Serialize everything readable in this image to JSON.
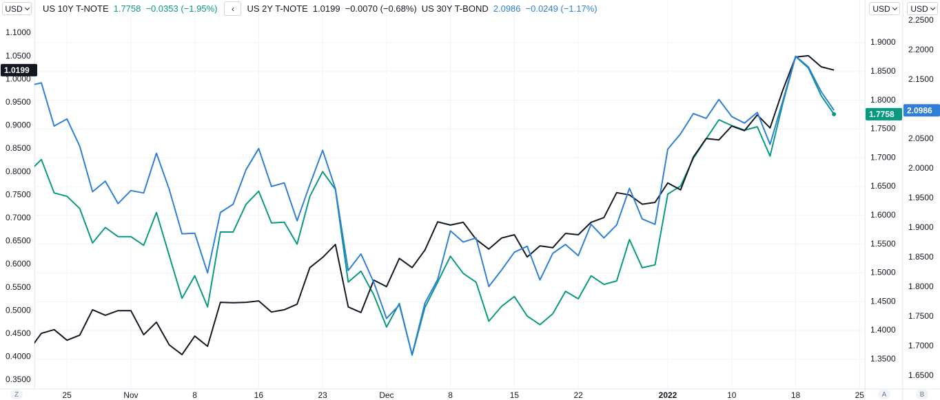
{
  "currency_buttons": [
    "USD",
    "USD",
    "USD"
  ],
  "scale_buttons": [
    "Z",
    "A",
    "B"
  ],
  "collapse_button": "‹",
  "chart_data": {
    "type": "line",
    "categories": [
      null,
      null,
      null,
      "25",
      null,
      null,
      null,
      null,
      "Nov",
      null,
      null,
      null,
      null,
      "8",
      null,
      null,
      null,
      null,
      "16",
      null,
      null,
      null,
      null,
      "23",
      null,
      null,
      null,
      null,
      "Dec",
      null,
      null,
      null,
      null,
      "8",
      null,
      null,
      null,
      null,
      "15",
      null,
      null,
      null,
      null,
      "22",
      null,
      null,
      null,
      null,
      null,
      null,
      "2022",
      null,
      null,
      null,
      null,
      "10",
      null,
      null,
      null,
      null,
      "18",
      null,
      null,
      null,
      null,
      "25"
    ],
    "series": [
      {
        "name": "US 10Y T-NOTE",
        "color": "#089981",
        "axis": "y2",
        "change": "−0.0353 (−1.95%)",
        "values": [
          1.675,
          1.697,
          1.639,
          1.633,
          1.612,
          1.552,
          1.579,
          1.563,
          1.563,
          1.548,
          1.605,
          1.53,
          1.456,
          1.495,
          1.441,
          1.571,
          1.571,
          1.619,
          1.642,
          1.587,
          1.588,
          1.55,
          1.633,
          1.676,
          1.645,
          1.484,
          1.503,
          1.462,
          1.406,
          1.447,
          1.357,
          1.44,
          1.484,
          1.529,
          1.499,
          1.484,
          1.416,
          1.442,
          1.459,
          1.425,
          1.41,
          1.429,
          1.468,
          1.455,
          1.495,
          1.48,
          1.486,
          1.558,
          1.509,
          1.514,
          1.637,
          1.651,
          1.699,
          1.733,
          1.766,
          1.756,
          1.748,
          1.754,
          1.703,
          1.795,
          1.876,
          1.856,
          1.808,
          1.7758,
          null,
          null
        ]
      },
      {
        "name": "US 2Y T-NOTE",
        "color": "#131722",
        "axis": "y",
        "change": "−0.0070 (−0.68%)",
        "values": [
          0.413,
          0.451,
          0.459,
          0.436,
          0.447,
          0.502,
          0.49,
          0.5,
          0.5,
          0.448,
          0.475,
          0.426,
          0.405,
          0.445,
          0.423,
          0.518,
          0.517,
          0.518,
          0.521,
          0.497,
          0.502,
          0.514,
          0.593,
          0.615,
          0.643,
          0.508,
          0.496,
          0.566,
          0.552,
          0.613,
          0.593,
          0.631,
          0.692,
          0.685,
          0.691,
          0.654,
          0.633,
          0.657,
          0.664,
          0.616,
          0.64,
          0.636,
          0.667,
          0.664,
          0.691,
          0.701,
          0.755,
          0.75,
          0.73,
          0.734,
          0.776,
          0.761,
          0.832,
          0.872,
          0.869,
          0.899,
          0.889,
          0.923,
          0.895,
          0.977,
          1.048,
          1.051,
          1.027,
          1.0199,
          null,
          null
        ]
      },
      {
        "name": "US 30Y T-BOND",
        "color": "#2f7ed8",
        "axis": "y3",
        "change": "−0.0249 (−1.17%)",
        "values": [
          2.14,
          2.145,
          2.072,
          2.084,
          2.038,
          1.961,
          1.979,
          1.941,
          1.963,
          1.959,
          2.026,
          1.965,
          1.89,
          1.891,
          1.824,
          1.926,
          1.94,
          1.998,
          2.034,
          1.97,
          1.976,
          1.912,
          1.973,
          2.031,
          1.966,
          1.828,
          1.856,
          1.808,
          1.747,
          1.77,
          1.686,
          1.773,
          1.813,
          1.895,
          1.876,
          1.883,
          1.801,
          1.829,
          1.859,
          1.869,
          1.812,
          1.857,
          1.872,
          1.853,
          1.906,
          1.883,
          1.905,
          1.967,
          1.915,
          1.906,
          2.033,
          2.059,
          2.093,
          2.085,
          2.117,
          2.088,
          2.077,
          2.095,
          2.041,
          2.115,
          2.19,
          2.172,
          2.13,
          2.0986,
          null,
          null
        ]
      }
    ],
    "ylim": [
      0.3307,
      1.1714
    ],
    "yticks": [
      {
        "value": 1.1,
        "label": "1.1000"
      },
      {
        "value": 1.05,
        "label": "1.0500"
      },
      {
        "value": 1.0,
        "label": "1.0000"
      },
      {
        "value": 0.95,
        "label": "0.9500"
      },
      {
        "value": 0.9,
        "label": "0.9000"
      },
      {
        "value": 0.85,
        "label": "0.8500"
      },
      {
        "value": 0.8,
        "label": "0.8000"
      },
      {
        "value": 0.75,
        "label": "0.7500"
      },
      {
        "value": 0.7,
        "label": "0.7000"
      },
      {
        "value": 0.65,
        "label": "0.6500"
      },
      {
        "value": 0.6,
        "label": "0.6000"
      },
      {
        "value": 0.55,
        "label": "0.5500"
      },
      {
        "value": 0.5,
        "label": "0.5000"
      },
      {
        "value": 0.45,
        "label": "0.4500"
      },
      {
        "value": 0.4,
        "label": "0.4000"
      },
      {
        "value": 0.35,
        "label": "0.3500"
      }
    ],
    "y2lim": [
      1.2983,
      1.9742
    ],
    "y2ticks": [
      {
        "value": 1.9,
        "label": "1.9000"
      },
      {
        "value": 1.85,
        "label": "1.8500"
      },
      {
        "value": 1.8,
        "label": "1.8000"
      },
      {
        "value": 1.75,
        "label": "1.7500"
      },
      {
        "value": 1.7,
        "label": "1.7000"
      },
      {
        "value": 1.65,
        "label": "1.6500"
      },
      {
        "value": 1.6,
        "label": "1.6000"
      },
      {
        "value": 1.55,
        "label": "1.5500"
      },
      {
        "value": 1.5,
        "label": "1.5000"
      },
      {
        "value": 1.45,
        "label": "1.4500"
      },
      {
        "value": 1.4,
        "label": "1.4000"
      },
      {
        "value": 1.35,
        "label": "1.3500"
      }
    ],
    "y3lim": [
      1.6279,
      2.2849
    ],
    "y3ticks": [
      {
        "value": 2.25,
        "label": "2.2500"
      },
      {
        "value": 2.2,
        "label": "2.2000"
      },
      {
        "value": 2.15,
        "label": "2.1500"
      },
      {
        "value": 2.1,
        "label": "2.1000"
      },
      {
        "value": 2.05,
        "label": "2.0500"
      },
      {
        "value": 2.0,
        "label": "2.0000"
      },
      {
        "value": 1.95,
        "label": "1.9500"
      },
      {
        "value": 1.9,
        "label": "1.9000"
      },
      {
        "value": 1.85,
        "label": "1.8500"
      },
      {
        "value": 1.8,
        "label": "1.8000"
      },
      {
        "value": 1.75,
        "label": "1.7500"
      },
      {
        "value": 1.7,
        "label": "1.7000"
      },
      {
        "value": 1.65,
        "label": "1.6500"
      }
    ],
    "grid": true
  }
}
